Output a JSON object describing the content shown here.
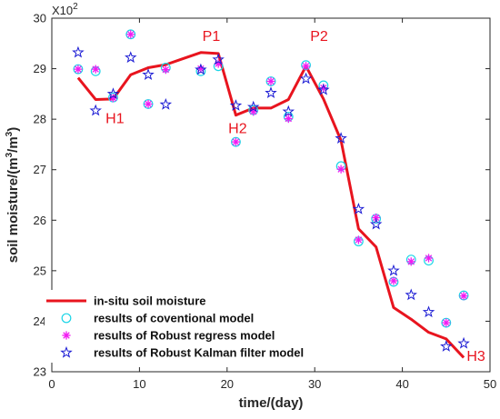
{
  "chart_data": {
    "type": "line",
    "xlabel": "time/(day)",
    "ylabel": "soil moisture/(m",
    "ylabel_sup1": "3",
    "ylabel_mid": "/m",
    "ylabel_sup2": "3",
    "ylabel_end": ")",
    "y_multiplier": "X10",
    "y_multiplier_exp": "2",
    "xlim": [
      0,
      50
    ],
    "ylim": [
      23,
      30
    ],
    "xticks": [
      0,
      10,
      20,
      30,
      40,
      50
    ],
    "yticks": [
      23,
      24,
      25,
      26,
      27,
      28,
      29,
      30
    ],
    "grid": false,
    "legend_position": "bottom-left",
    "series": [
      {
        "name": "in-situ soil moisture",
        "style": "line",
        "color": "#e8141e",
        "x": [
          3,
          5,
          7,
          9,
          11,
          13,
          15,
          17,
          19,
          21,
          23,
          25,
          27,
          29,
          31,
          33,
          35,
          37,
          39,
          41,
          43,
          45,
          47
        ],
        "y": [
          28.82,
          28.39,
          28.4,
          28.88,
          29.02,
          29.08,
          29.2,
          29.32,
          29.3,
          28.08,
          28.22,
          28.22,
          28.39,
          29.05,
          28.4,
          27.58,
          25.83,
          25.47,
          24.27,
          24.04,
          23.78,
          23.65,
          23.28
        ]
      },
      {
        "name": "results of coventional model",
        "style": "circle",
        "color": "#19d4e6",
        "x": [
          3,
          5,
          7,
          9,
          11,
          13,
          17,
          19,
          21,
          23,
          25,
          27,
          29,
          31,
          33,
          35,
          37,
          39,
          41,
          43,
          45,
          47
        ],
        "y": [
          28.99,
          28.95,
          28.43,
          29.68,
          28.3,
          29.02,
          28.95,
          29.05,
          27.55,
          28.18,
          28.75,
          28.05,
          29.07,
          28.67,
          27.07,
          25.58,
          26.03,
          24.78,
          25.22,
          25.2,
          23.97,
          24.51
        ]
      },
      {
        "name": "results of Robust regress model",
        "style": "asterisk",
        "color": "#f21bf2",
        "x": [
          3,
          5,
          7,
          9,
          11,
          13,
          17,
          19,
          21,
          23,
          25,
          27,
          29,
          31,
          33,
          35,
          37,
          39,
          41,
          43,
          45,
          47
        ],
        "y": [
          28.99,
          28.99,
          28.42,
          29.68,
          28.3,
          28.98,
          29.0,
          29.1,
          27.55,
          28.15,
          28.75,
          28.01,
          29.05,
          28.62,
          27.01,
          25.61,
          26.05,
          24.8,
          25.18,
          25.25,
          23.97,
          24.5
        ]
      },
      {
        "name": "results of Robust Kalman filter model",
        "style": "star",
        "color": "#1a1ad4",
        "x": [
          3,
          5,
          7,
          9,
          11,
          13,
          17,
          19,
          21,
          23,
          25,
          27,
          29,
          31,
          33,
          35,
          37,
          39,
          41,
          43,
          45,
          47
        ],
        "y": [
          29.32,
          28.17,
          28.5,
          29.22,
          28.88,
          28.29,
          28.98,
          29.18,
          28.27,
          28.24,
          28.52,
          28.15,
          28.8,
          28.58,
          27.62,
          26.22,
          25.92,
          25.0,
          24.52,
          24.18,
          23.5,
          23.56
        ]
      }
    ],
    "annotations": [
      {
        "text": "P1",
        "x": 18.2,
        "y": 29.55
      },
      {
        "text": "P2",
        "x": 30.5,
        "y": 29.55
      },
      {
        "text": "H1",
        "x": 7.2,
        "y": 27.92
      },
      {
        "text": "H2",
        "x": 21.2,
        "y": 27.72
      },
      {
        "text": "H3",
        "x": 48.4,
        "y": 23.22
      }
    ]
  }
}
